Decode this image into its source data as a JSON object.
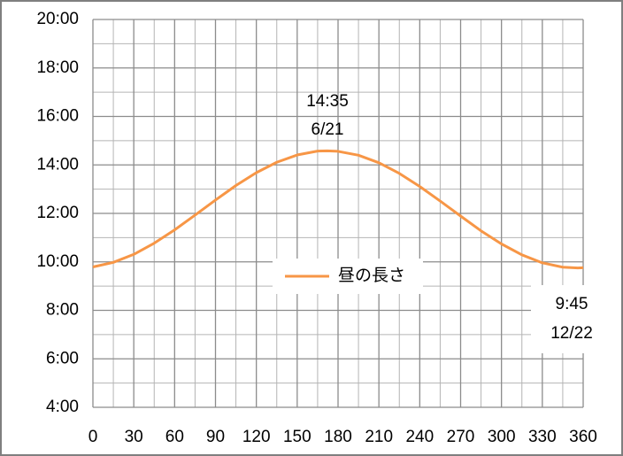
{
  "chart_data": {
    "type": "line",
    "x": [
      0,
      15,
      30,
      45,
      60,
      75,
      90,
      105,
      120,
      135,
      150,
      165,
      172,
      180,
      195,
      210,
      225,
      240,
      255,
      270,
      285,
      300,
      315,
      330,
      345,
      356,
      360
    ],
    "series": [
      {
        "name": "昼の長さ",
        "color": "#f79646",
        "values": [
          9.79,
          9.98,
          10.31,
          10.77,
          11.32,
          11.93,
          12.55,
          13.15,
          13.68,
          14.11,
          14.41,
          14.57,
          14.58,
          14.56,
          14.4,
          14.09,
          13.65,
          13.11,
          12.51,
          11.89,
          11.28,
          10.74,
          10.29,
          9.96,
          9.78,
          9.75,
          9.76
        ]
      }
    ],
    "xlim": [
      0,
      360
    ],
    "xticks": [
      0,
      30,
      60,
      90,
      120,
      150,
      180,
      210,
      240,
      270,
      300,
      330,
      360
    ],
    "xminorticks": [
      15,
      45,
      75,
      105,
      135,
      165,
      195,
      225,
      255,
      285,
      315,
      345
    ],
    "ylim": [
      4,
      20
    ],
    "yticks": [
      {
        "value": 4,
        "label": "4:00"
      },
      {
        "value": 6,
        "label": "6:00"
      },
      {
        "value": 8,
        "label": "8:00"
      },
      {
        "value": 10,
        "label": "10:00"
      },
      {
        "value": 12,
        "label": "12:00"
      },
      {
        "value": 14,
        "label": "14:00"
      },
      {
        "value": 16,
        "label": "16:00"
      },
      {
        "value": 18,
        "label": "18:00"
      },
      {
        "value": 20,
        "label": "20:00"
      }
    ],
    "yminorticks": [
      5,
      7,
      9,
      11,
      13,
      15,
      17,
      19
    ],
    "grid": true,
    "annotations": [
      {
        "text": [
          "14:35",
          "6/21"
        ]
      },
      {
        "text": [
          "9:45",
          "12/22"
        ]
      }
    ]
  }
}
